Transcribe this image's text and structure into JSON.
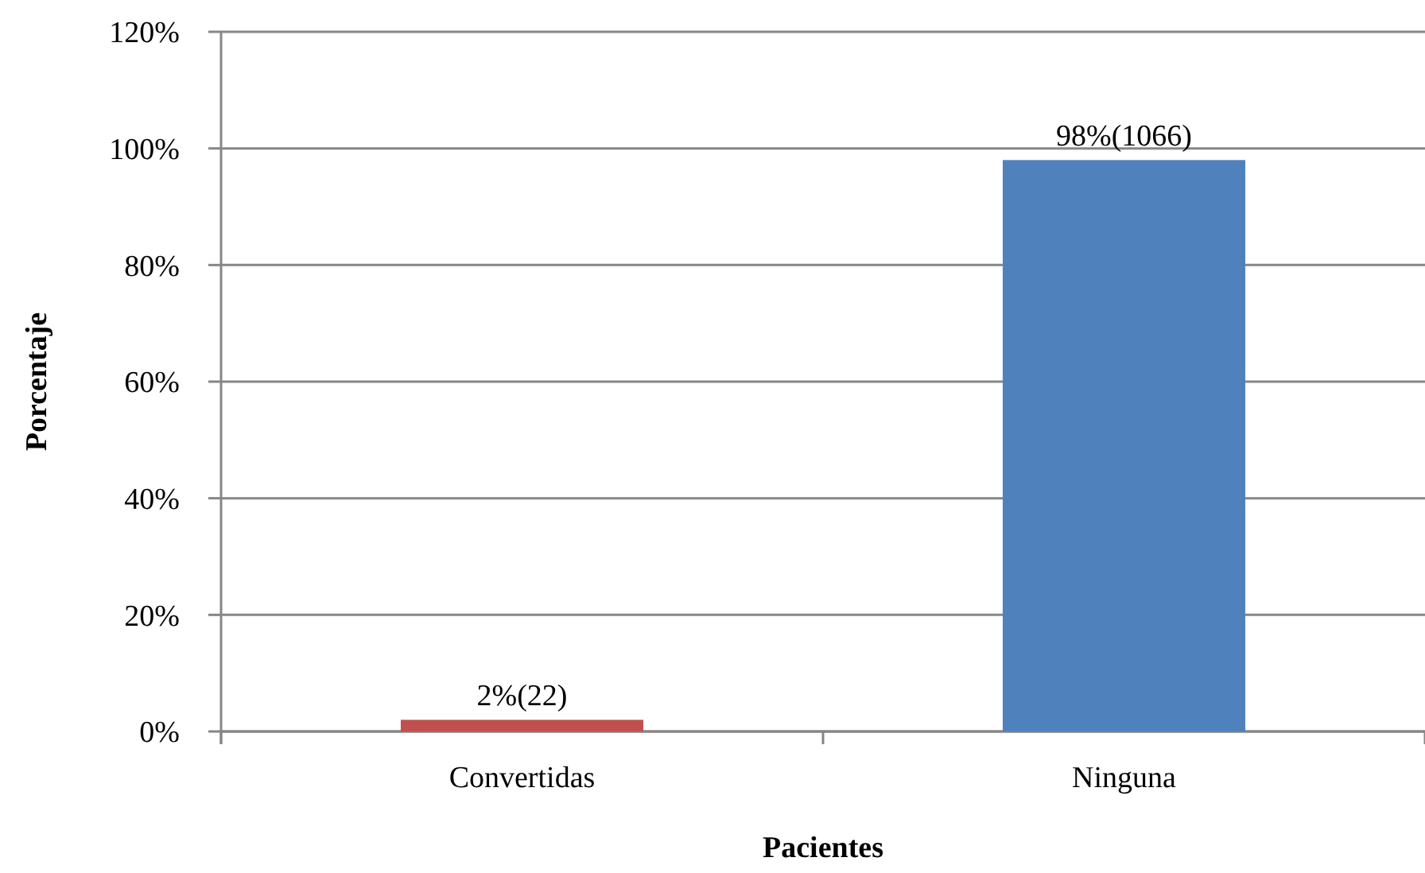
{
  "chart_data": {
    "type": "bar",
    "categories": [
      "Convertidas",
      "Ninguna"
    ],
    "values": [
      2,
      98
    ],
    "colors": [
      "#c0504d",
      "#4f81bd"
    ],
    "value_labels": [
      "2%(22)",
      "98%(1066)"
    ],
    "xlabel": "Pacientes",
    "ylabel": "Porcentaje",
    "ylim": [
      0,
      120
    ],
    "yticks": [
      {
        "value": 0,
        "label": "0%"
      },
      {
        "value": 20,
        "label": "20%"
      },
      {
        "value": 40,
        "label": "40%"
      },
      {
        "value": 60,
        "label": "60%"
      },
      {
        "value": 80,
        "label": "80%"
      },
      {
        "value": 100,
        "label": "100%"
      },
      {
        "value": 120,
        "label": "120%"
      }
    ],
    "grid": "y"
  }
}
